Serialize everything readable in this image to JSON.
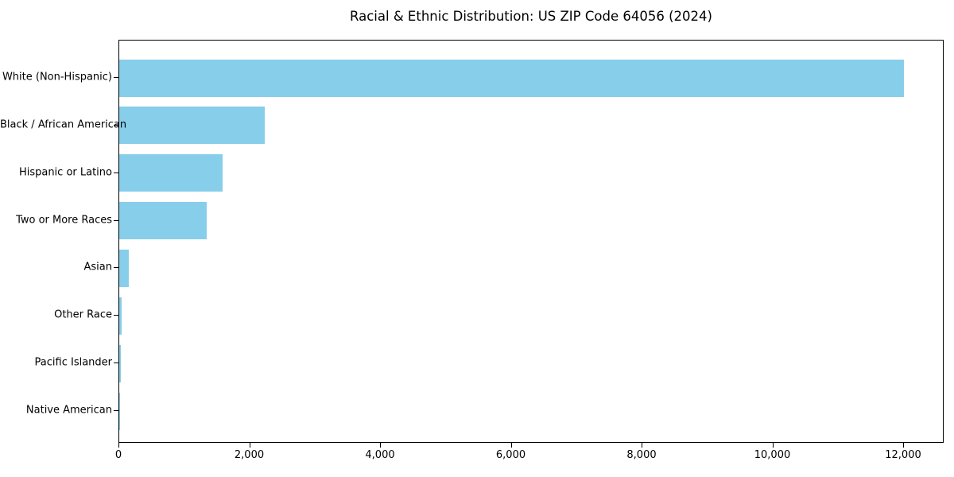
{
  "chart_data": {
    "type": "bar",
    "orientation": "horizontal",
    "title": "Racial & Ethnic Distribution: US ZIP Code 64056 (2024)",
    "categories": [
      "White (Non-Hispanic)",
      "Black / African American",
      "Hispanic or Latino",
      "Two or More Races",
      "Asian",
      "Other Race",
      "Pacific Islander",
      "Native American"
    ],
    "values": [
      12000,
      2220,
      1580,
      1340,
      140,
      40,
      25,
      5
    ],
    "xlabel": "",
    "ylabel": "",
    "xlim": [
      0,
      12620
    ],
    "x_ticks": [
      0,
      2000,
      4000,
      6000,
      8000,
      10000,
      12000
    ],
    "x_tick_labels": [
      "0",
      "2,000",
      "4,000",
      "6,000",
      "8,000",
      "10,000",
      "12,000"
    ],
    "bar_color": "#87CEEB",
    "frame_color": "#000000",
    "text_color": "#000000",
    "grid": false,
    "legend": null
  }
}
